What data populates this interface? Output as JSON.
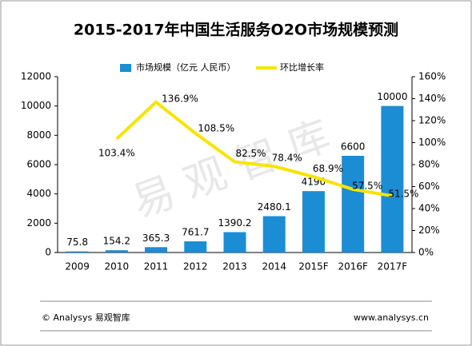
{
  "chart_data": {
    "type": "bar_line",
    "title": "2015-2017年中国生活服务O2O市场规模预测",
    "watermark": "易 观 智 库",
    "categories": [
      "2009",
      "2010",
      "2011",
      "2012",
      "2013",
      "2014",
      "2015F",
      "2016F",
      "2017F"
    ],
    "series": [
      {
        "name": "市场规模（亿元 人民币）",
        "color": "#1b8dd4",
        "type": "bar",
        "values": [
          75.8,
          154.2,
          365.3,
          761.7,
          1390.2,
          2480.1,
          4190,
          6600,
          10000
        ]
      },
      {
        "name": "环比增长率",
        "color": "#f7e400",
        "type": "line",
        "axis": "y2",
        "values": [
          null,
          103.4,
          136.9,
          108.5,
          82.5,
          78.4,
          68.9,
          57.5,
          51.5
        ],
        "value_labels": [
          null,
          "103.4%",
          "136.9%",
          "108.5%",
          "82.5%",
          "78.4%",
          "68.9%",
          "57.5%",
          "51.5%"
        ]
      }
    ],
    "ylim": [
      0,
      12000
    ],
    "yticks": [
      0,
      2000,
      4000,
      6000,
      8000,
      10000,
      12000
    ],
    "y2lim": [
      0,
      160
    ],
    "y2ticks": [
      {
        "value": 0,
        "label": "0%"
      },
      {
        "value": 20,
        "label": "20%"
      },
      {
        "value": 40,
        "label": "40%"
      },
      {
        "value": 60,
        "label": "60%"
      },
      {
        "value": 80,
        "label": "80%"
      },
      {
        "value": 100,
        "label": "100%"
      },
      {
        "value": 120,
        "label": "120%"
      },
      {
        "value": 140,
        "label": "140%"
      },
      {
        "value": 160,
        "label": "160%"
      }
    ],
    "legend": "top",
    "footer_left": "© Analysys 易观智库",
    "footer_right": "www.analysys.cn"
  }
}
